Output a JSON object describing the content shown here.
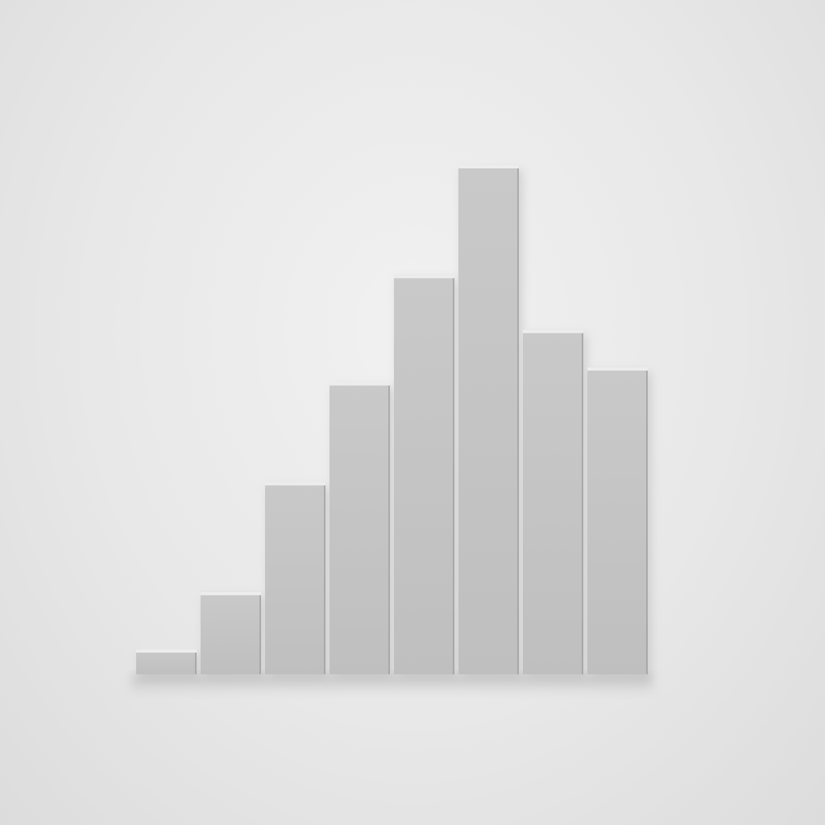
{
  "chart_data": {
    "type": "bar",
    "categories": [
      "",
      "",
      "",
      "",
      "",
      "",
      "",
      ""
    ],
    "values": [
      1,
      3.3,
      7.7,
      11.7,
      16,
      20.4,
      13.8,
      12.3
    ],
    "ylim": [
      0,
      20.4
    ],
    "grid": false,
    "legend": "none",
    "colors": {
      "background": "#e9e9e9",
      "bar_front": "#c4c4c4",
      "bar_top": "#ededed",
      "bar_edge": "#9e9e9e",
      "shadow": "#b8b8b8"
    }
  }
}
